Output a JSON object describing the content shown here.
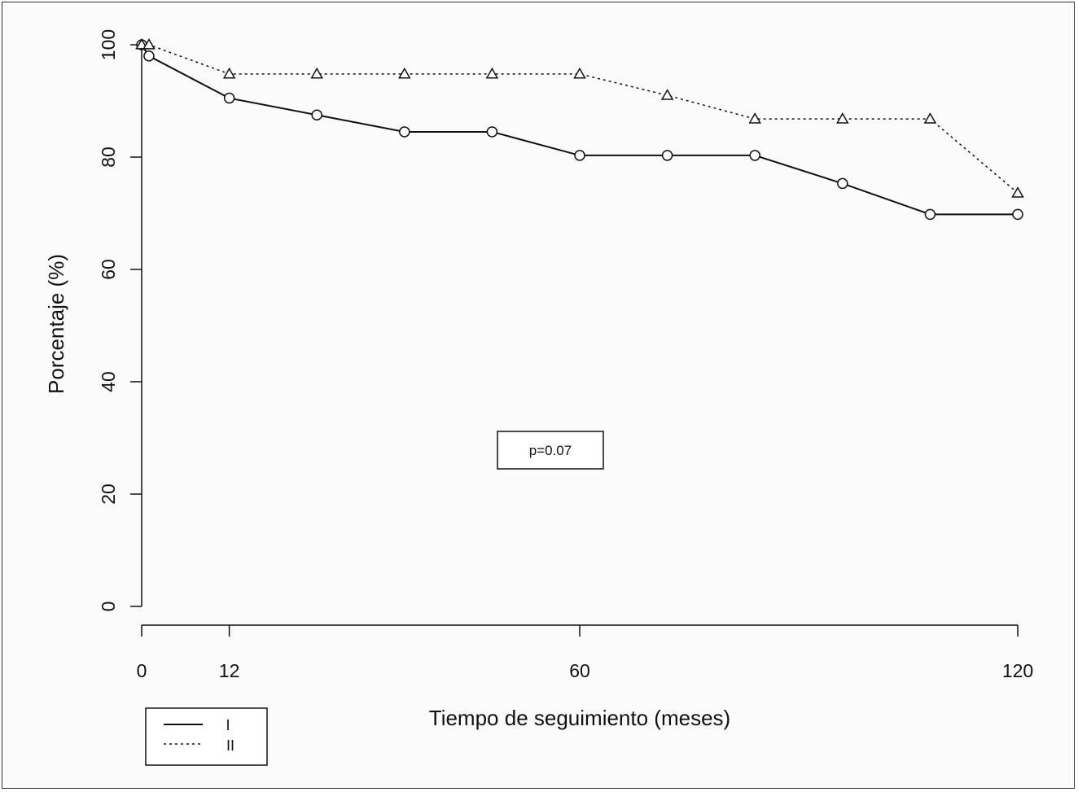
{
  "chart_data": {
    "type": "line",
    "xlabel": "Tiempo de seguimiento (meses)",
    "ylabel": "Porcentaje (%)",
    "xlim": [
      0,
      120
    ],
    "ylim": [
      0,
      100
    ],
    "x_ticks": [
      0,
      12,
      60,
      120
    ],
    "y_ticks": [
      0,
      20,
      40,
      60,
      80,
      100
    ],
    "grid": false,
    "legend_position": "bottom-left",
    "annotation": "p=0.07",
    "series": [
      {
        "name": "I",
        "line_style": "solid",
        "marker": "circle",
        "x": [
          0,
          1,
          12,
          24,
          36,
          48,
          60,
          72,
          84,
          96,
          108,
          120
        ],
        "y": [
          100,
          98,
          90.5,
          87.5,
          84.5,
          84.5,
          80.3,
          80.3,
          80.3,
          75.3,
          69.8,
          69.8
        ]
      },
      {
        "name": "II",
        "line_style": "dotted",
        "marker": "triangle",
        "x": [
          0,
          1,
          12,
          24,
          36,
          48,
          60,
          72,
          84,
          96,
          108,
          120
        ],
        "y": [
          100,
          100,
          94.8,
          94.8,
          94.8,
          94.8,
          94.8,
          91.0,
          86.8,
          86.8,
          86.8,
          73.6
        ]
      }
    ]
  }
}
